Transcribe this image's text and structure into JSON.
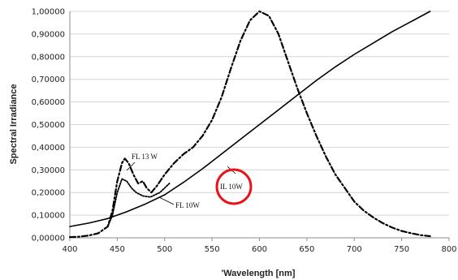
{
  "chart_data": {
    "type": "line",
    "xlabel": "'Wavelength [nm]",
    "ylabel": "Spectral Irradiance",
    "xlim": [
      400,
      800
    ],
    "ylim": [
      0,
      1
    ],
    "x_ticks": [
      400,
      450,
      500,
      550,
      600,
      650,
      700,
      750,
      800
    ],
    "y_ticks": [
      0,
      0.1,
      0.2,
      0.3,
      0.4,
      0.5,
      0.6,
      0.7,
      0.8,
      0.9,
      1.0
    ],
    "x_tick_labels": [
      "400",
      "450",
      "500",
      "550",
      "600",
      "650",
      "700",
      "750",
      "800"
    ],
    "y_tick_labels": [
      "0,00000",
      "0,10000",
      "0,20000",
      "0,30000",
      "0,40000",
      "0,50000",
      "0,60000",
      "0,70000",
      "0,80000",
      "0,90000",
      "1,00000"
    ],
    "grid": "horizontal",
    "series": [
      {
        "name": "IL 10W",
        "style": "solid",
        "color": "#000000",
        "points": [
          [
            400,
            0.05
          ],
          [
            420,
            0.065
          ],
          [
            440,
            0.085
          ],
          [
            460,
            0.115
          ],
          [
            480,
            0.15
          ],
          [
            500,
            0.19
          ],
          [
            520,
            0.245
          ],
          [
            540,
            0.305
          ],
          [
            560,
            0.37
          ],
          [
            580,
            0.435
          ],
          [
            600,
            0.5
          ],
          [
            620,
            0.565
          ],
          [
            640,
            0.63
          ],
          [
            660,
            0.695
          ],
          [
            680,
            0.755
          ],
          [
            700,
            0.81
          ],
          [
            720,
            0.86
          ],
          [
            740,
            0.91
          ],
          [
            760,
            0.955
          ],
          [
            780,
            1.0
          ]
        ]
      },
      {
        "name": "FL 13 W",
        "style": "dashdot",
        "color": "#000000",
        "points": [
          [
            400,
            0.003
          ],
          [
            410,
            0.005
          ],
          [
            420,
            0.01
          ],
          [
            430,
            0.02
          ],
          [
            440,
            0.05
          ],
          [
            445,
            0.12
          ],
          [
            450,
            0.25
          ],
          [
            455,
            0.33
          ],
          [
            458,
            0.35
          ],
          [
            462,
            0.33
          ],
          [
            467,
            0.28
          ],
          [
            472,
            0.24
          ],
          [
            477,
            0.25
          ],
          [
            481,
            0.22
          ],
          [
            486,
            0.2
          ],
          [
            492,
            0.23
          ],
          [
            500,
            0.28
          ],
          [
            510,
            0.33
          ],
          [
            520,
            0.37
          ],
          [
            530,
            0.4
          ],
          [
            540,
            0.45
          ],
          [
            550,
            0.52
          ],
          [
            560,
            0.62
          ],
          [
            570,
            0.75
          ],
          [
            580,
            0.87
          ],
          [
            590,
            0.96
          ],
          [
            600,
            1.0
          ],
          [
            610,
            0.98
          ],
          [
            620,
            0.9
          ],
          [
            630,
            0.78
          ],
          [
            640,
            0.66
          ],
          [
            650,
            0.55
          ],
          [
            660,
            0.45
          ],
          [
            670,
            0.36
          ],
          [
            680,
            0.28
          ],
          [
            690,
            0.22
          ],
          [
            700,
            0.16
          ],
          [
            710,
            0.12
          ],
          [
            720,
            0.09
          ],
          [
            730,
            0.065
          ],
          [
            740,
            0.045
          ],
          [
            750,
            0.03
          ],
          [
            760,
            0.02
          ],
          [
            770,
            0.012
          ],
          [
            780,
            0.007
          ]
        ]
      },
      {
        "name": "FL 10W",
        "style": "dotted",
        "color": "#000000",
        "points": [
          [
            440,
            0.05
          ],
          [
            445,
            0.1
          ],
          [
            450,
            0.2
          ],
          [
            455,
            0.26
          ],
          [
            460,
            0.25
          ],
          [
            465,
            0.22
          ],
          [
            470,
            0.2
          ],
          [
            477,
            0.185
          ],
          [
            485,
            0.18
          ],
          [
            495,
            0.2
          ],
          [
            505,
            0.24
          ]
        ]
      }
    ],
    "annotations": [
      {
        "text": "FL 13 W"
      },
      {
        "text": "FL 10W"
      },
      {
        "text": "IL 10W"
      }
    ],
    "highlight_circle_color": "#e8141a"
  }
}
